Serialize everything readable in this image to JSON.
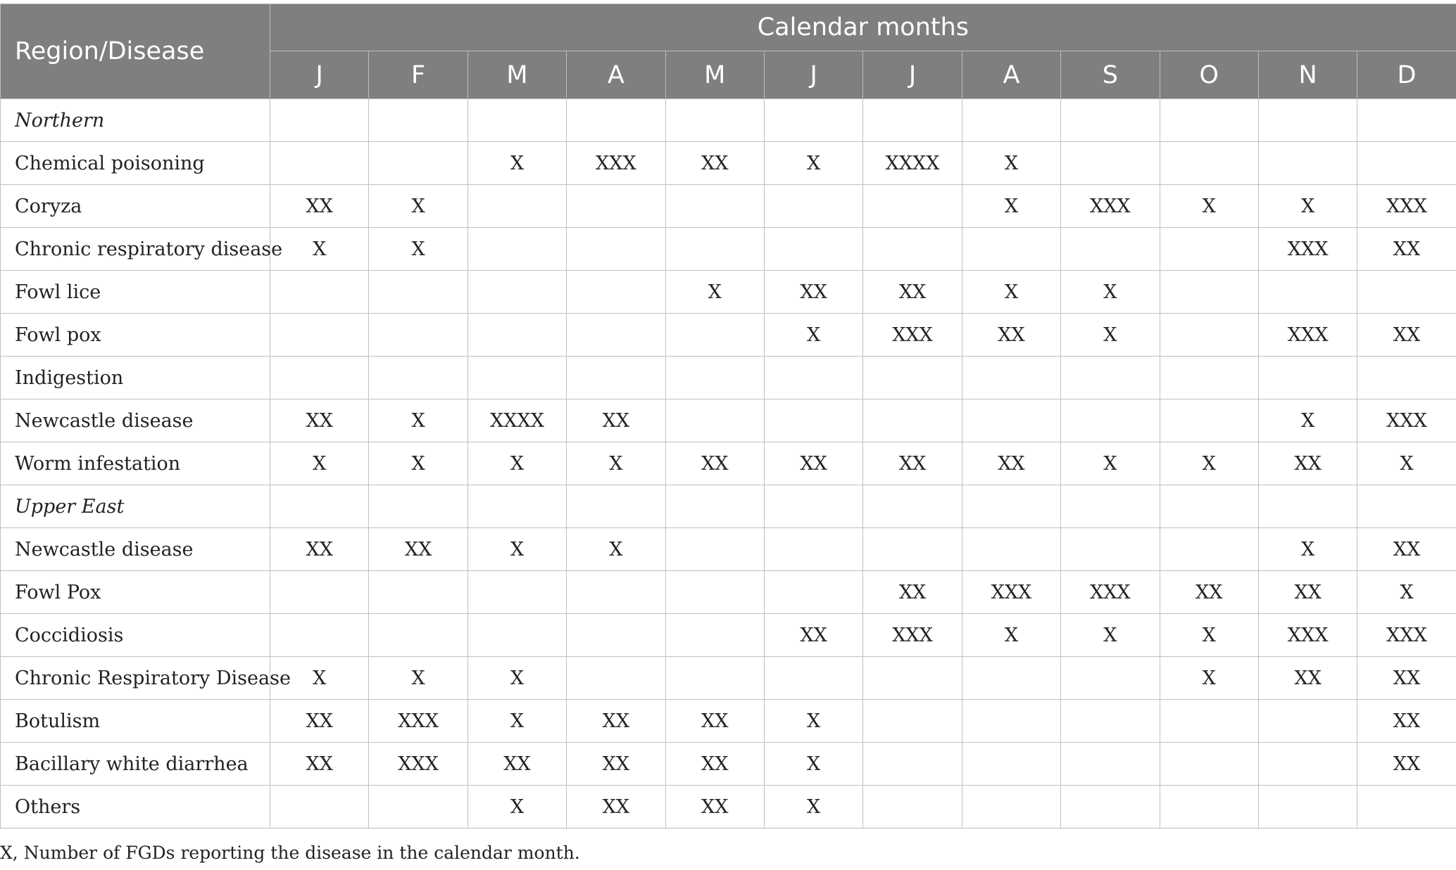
{
  "table": {
    "header": {
      "first_col": "Region/Disease",
      "group": "Calendar months",
      "months": [
        "J",
        "F",
        "M",
        "A",
        "M",
        "J",
        "J",
        "A",
        "S",
        "O",
        "N",
        "D"
      ]
    },
    "rows": [
      {
        "type": "region",
        "label": "Northern",
        "cells": [
          "",
          "",
          "",
          "",
          "",
          "",
          "",
          "",
          "",
          "",
          "",
          ""
        ]
      },
      {
        "type": "disease",
        "label": "Chemical poisoning",
        "cells": [
          "",
          "",
          "X",
          "XXX",
          "XX",
          "X",
          "XXXX",
          "X",
          "",
          "",
          "",
          ""
        ]
      },
      {
        "type": "disease",
        "label": "Coryza",
        "cells": [
          "XX",
          "X",
          "",
          "",
          "",
          "",
          "",
          "X",
          "XXX",
          "X",
          "X",
          "XXX"
        ]
      },
      {
        "type": "disease",
        "label": "Chronic respiratory disease",
        "cells": [
          "X",
          "X",
          "",
          "",
          "",
          "",
          "",
          "",
          "",
          "",
          "XXX",
          "XX"
        ]
      },
      {
        "type": "disease",
        "label": "Fowl lice",
        "cells": [
          "",
          "",
          "",
          "",
          "X",
          "XX",
          "XX",
          "X",
          "X",
          "",
          "",
          ""
        ]
      },
      {
        "type": "disease",
        "label": "Fowl pox",
        "cells": [
          "",
          "",
          "",
          "",
          "",
          "X",
          "XXX",
          "XX",
          "X",
          "",
          "XXX",
          "XX"
        ]
      },
      {
        "type": "disease",
        "label": "Indigestion",
        "cells": [
          "",
          "",
          "",
          "",
          "",
          "",
          "",
          "",
          "",
          "",
          "",
          ""
        ]
      },
      {
        "type": "disease",
        "label": "Newcastle disease",
        "cells": [
          "XX",
          "X",
          "XXXX",
          "XX",
          "",
          "",
          "",
          "",
          "",
          "",
          "X",
          "XXX"
        ]
      },
      {
        "type": "disease",
        "label": "Worm infestation",
        "cells": [
          "X",
          "X",
          "X",
          "X",
          "XX",
          "XX",
          "XX",
          "XX",
          "X",
          "X",
          "XX",
          "X"
        ]
      },
      {
        "type": "region",
        "label": "Upper East",
        "cells": [
          "",
          "",
          "",
          "",
          "",
          "",
          "",
          "",
          "",
          "",
          "",
          ""
        ]
      },
      {
        "type": "disease",
        "label": "Newcastle disease",
        "cells": [
          "XX",
          "XX",
          "X",
          "X",
          "",
          "",
          "",
          "",
          "",
          "",
          "X",
          "XX"
        ]
      },
      {
        "type": "disease",
        "label": "Fowl Pox",
        "cells": [
          "",
          "",
          "",
          "",
          "",
          "",
          "XX",
          "XXX",
          "XXX",
          "XX",
          "XX",
          "X"
        ]
      },
      {
        "type": "disease",
        "label": "Coccidiosis",
        "cells": [
          "",
          "",
          "",
          "",
          "",
          "XX",
          "XXX",
          "X",
          "X",
          "X",
          "XXX",
          "XXX"
        ]
      },
      {
        "type": "disease",
        "label": "Chronic Respiratory Disease",
        "cells": [
          "X",
          "X",
          "X",
          "",
          "",
          "",
          "",
          "",
          "",
          "X",
          "XX",
          "XX"
        ]
      },
      {
        "type": "disease",
        "label": "Botulism",
        "cells": [
          "XX",
          "XXX",
          "X",
          "XX",
          "XX",
          "X",
          "",
          "",
          "",
          "",
          "",
          "XX"
        ]
      },
      {
        "type": "disease",
        "label": "Bacillary white diarrhea",
        "cells": [
          "XX",
          "XXX",
          "XX",
          "XX",
          "XX",
          "X",
          "",
          "",
          "",
          "",
          "",
          "XX"
        ]
      },
      {
        "type": "disease",
        "label": "Others",
        "cells": [
          "",
          "",
          "X",
          "XX",
          "XX",
          "X",
          "",
          "",
          "",
          "",
          "",
          ""
        ]
      }
    ]
  },
  "footnote": "X, Number of FGDs reporting the disease in the calendar month.",
  "colors": {
    "header_bg": "#7f7f7f",
    "header_text": "#ffffff",
    "grid": "#bfbfbf"
  }
}
